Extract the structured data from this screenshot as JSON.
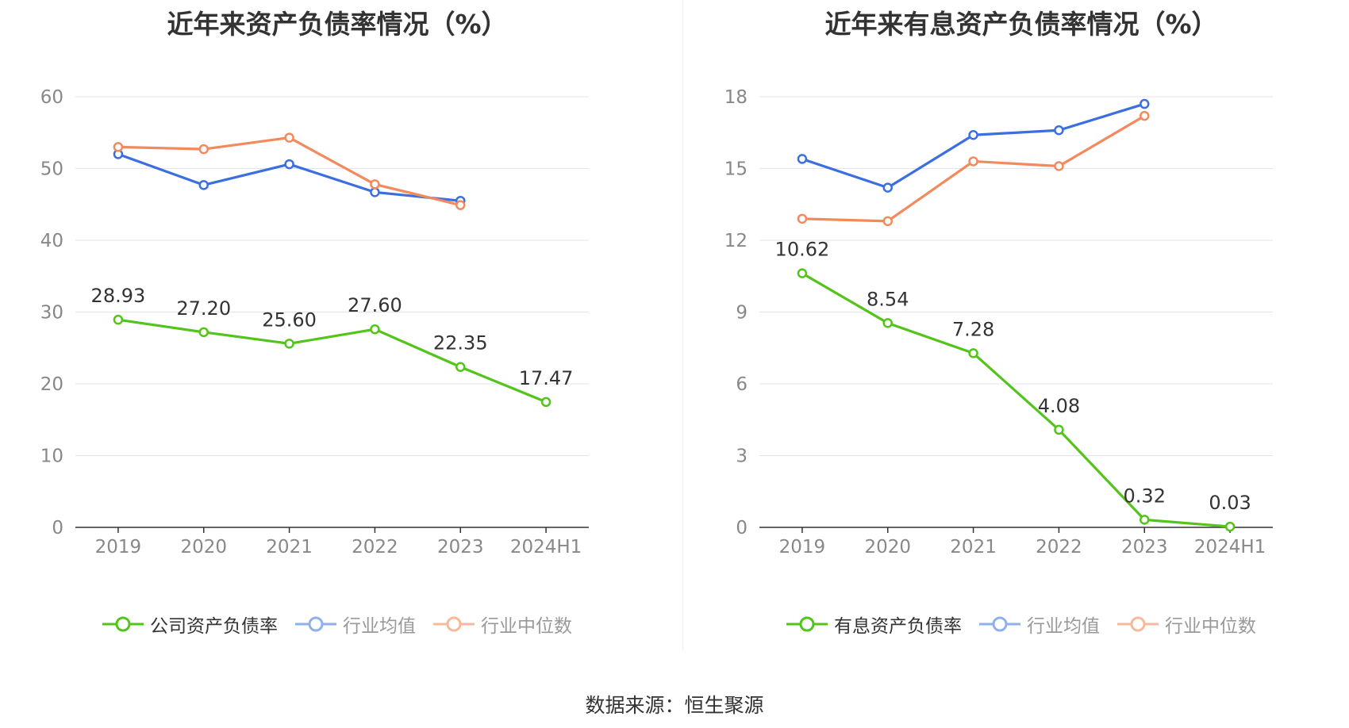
{
  "colors": {
    "company": "#52c41a",
    "avg": "#3b6fe0",
    "median": "#f38a5e",
    "grid": "#e2e5ee",
    "axis": "#333333",
    "tick": "#888888"
  },
  "charts": [
    {
      "title": "近年来资产负债率情况（%）",
      "legend": [
        "公司资产负债率",
        "行业均值",
        "行业中位数"
      ]
    },
    {
      "title": "近年来有息资产负债率情况（%）",
      "legend": [
        "有息资产负债率",
        "行业均值",
        "行业中位数"
      ]
    }
  ],
  "chart_data": [
    {
      "type": "line",
      "title": "近年来资产负债率情况（%）",
      "categories": [
        "2019",
        "2020",
        "2021",
        "2022",
        "2023",
        "2024H1"
      ],
      "ylim": [
        0,
        60
      ],
      "yticks": [
        0,
        10,
        20,
        30,
        40,
        50,
        60
      ],
      "grid": true,
      "legend_position": "bottom",
      "series": [
        {
          "name": "公司资产负债率",
          "values": [
            28.93,
            27.2,
            25.6,
            27.6,
            22.35,
            17.47
          ],
          "labels": [
            "28.93",
            "27.20",
            "25.60",
            "27.60",
            "22.35",
            "17.47"
          ]
        },
        {
          "name": "行业均值",
          "values": [
            52.0,
            47.7,
            50.6,
            46.7,
            45.5,
            null
          ]
        },
        {
          "name": "行业中位数",
          "values": [
            53.0,
            52.7,
            54.3,
            47.8,
            44.9,
            null
          ]
        }
      ]
    },
    {
      "type": "line",
      "title": "近年来有息资产负债率情况（%）",
      "categories": [
        "2019",
        "2020",
        "2021",
        "2022",
        "2023",
        "2024H1"
      ],
      "ylim": [
        0,
        18
      ],
      "yticks": [
        0,
        3,
        6,
        9,
        12,
        15,
        18
      ],
      "grid": true,
      "legend_position": "bottom",
      "series": [
        {
          "name": "有息资产负债率",
          "values": [
            10.62,
            8.54,
            7.28,
            4.08,
            0.32,
            0.03
          ],
          "labels": [
            "10.62",
            "8.54",
            "7.28",
            "4.08",
            "0.32",
            "0.03"
          ]
        },
        {
          "name": "行业均值",
          "values": [
            15.4,
            14.2,
            16.4,
            16.6,
            17.7,
            null
          ]
        },
        {
          "name": "行业中位数",
          "values": [
            12.9,
            12.8,
            15.3,
            15.1,
            17.2,
            null
          ]
        }
      ]
    }
  ],
  "source": "数据来源：恒生聚源"
}
